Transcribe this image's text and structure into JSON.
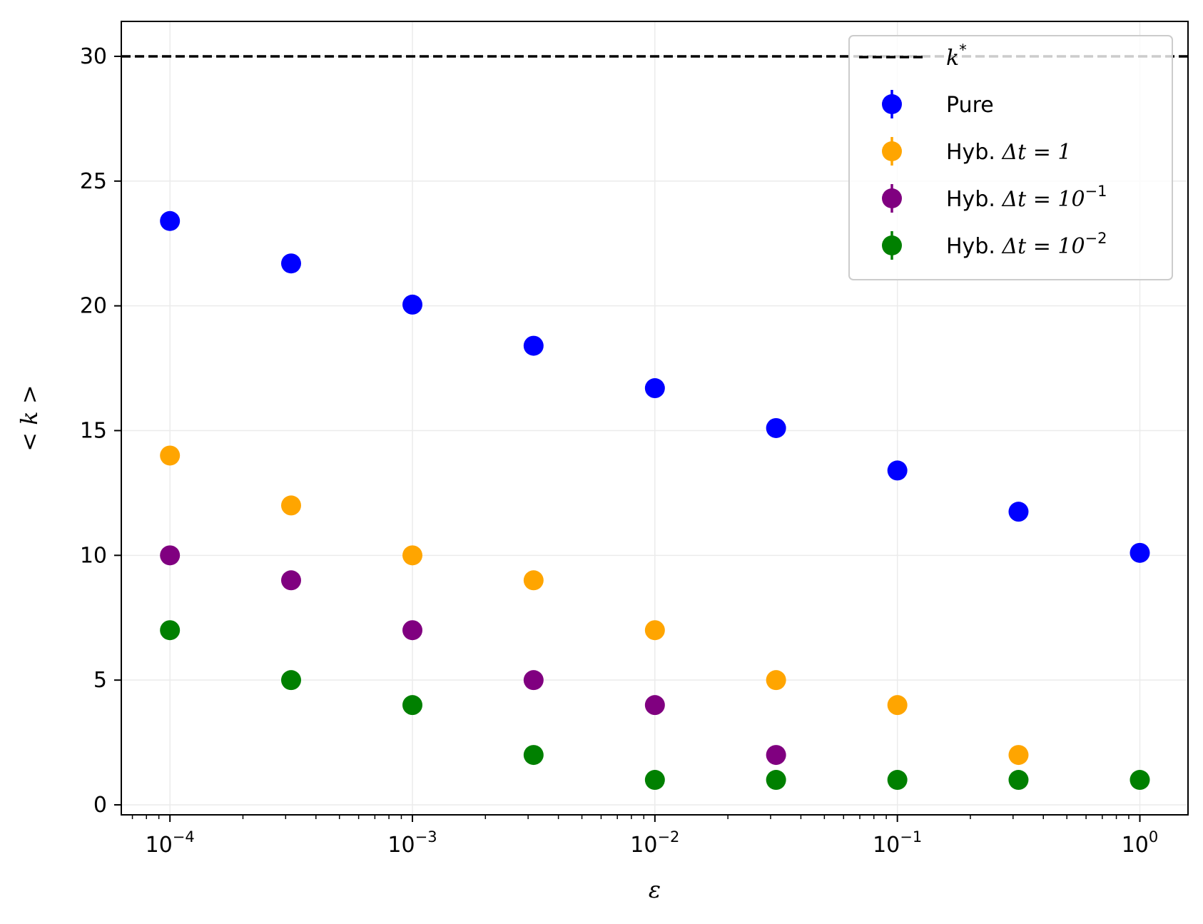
{
  "chart_data": {
    "type": "scatter",
    "title": "",
    "xlabel": "ε",
    "ylabel": "< k >",
    "xscale": "log",
    "xlim": [
      6.3e-05,
      1.58
    ],
    "ylim": [
      -0.4,
      31.4
    ],
    "x_ticks": [
      {
        "value": 0.0001,
        "base": "10",
        "exp": "−4"
      },
      {
        "value": 0.001,
        "base": "10",
        "exp": "−3"
      },
      {
        "value": 0.01,
        "base": "10",
        "exp": "−2"
      },
      {
        "value": 0.1,
        "base": "10",
        "exp": "−1"
      },
      {
        "value": 1,
        "base": "10",
        "exp": "0"
      }
    ],
    "y_ticks": [
      0,
      5,
      10,
      15,
      20,
      25,
      30
    ],
    "grid": true,
    "legend_position": "top-right",
    "reference_line": {
      "name": "k",
      "name_sup": "*",
      "y": 30,
      "color": "#000000",
      "style": "dashed"
    },
    "series": [
      {
        "name": "Pure",
        "name_math": "",
        "name_sup": "",
        "color": "#0000ff",
        "x": [
          0.0001,
          0.000316,
          0.001,
          0.00316,
          0.01,
          0.0316,
          0.1,
          0.316,
          1
        ],
        "y": [
          23.4,
          21.7,
          20.05,
          18.4,
          16.7,
          15.1,
          13.4,
          11.75,
          10.1
        ]
      },
      {
        "name": "Hyb. ",
        "name_math": "Δt = 1",
        "name_sup": "",
        "color": "#ffa500",
        "x": [
          0.0001,
          0.000316,
          0.001,
          0.00316,
          0.01,
          0.0316,
          0.1,
          0.316
        ],
        "y": [
          14,
          12,
          10,
          9,
          7,
          5,
          4,
          2
        ]
      },
      {
        "name": "Hyb. ",
        "name_math": "Δt = 10",
        "name_sup": "−1",
        "color": "#800080",
        "x": [
          0.0001,
          0.000316,
          0.001,
          0.00316,
          0.01,
          0.0316
        ],
        "y": [
          10,
          9,
          7,
          5,
          4,
          2
        ]
      },
      {
        "name": "Hyb. ",
        "name_math": "Δt = 10",
        "name_sup": "−2",
        "color": "#008000",
        "x": [
          0.0001,
          0.000316,
          0.001,
          0.00316,
          0.01,
          0.0316,
          0.1,
          0.316,
          1
        ],
        "y": [
          7,
          5,
          4,
          2,
          1,
          1,
          1,
          1,
          1
        ]
      }
    ]
  }
}
